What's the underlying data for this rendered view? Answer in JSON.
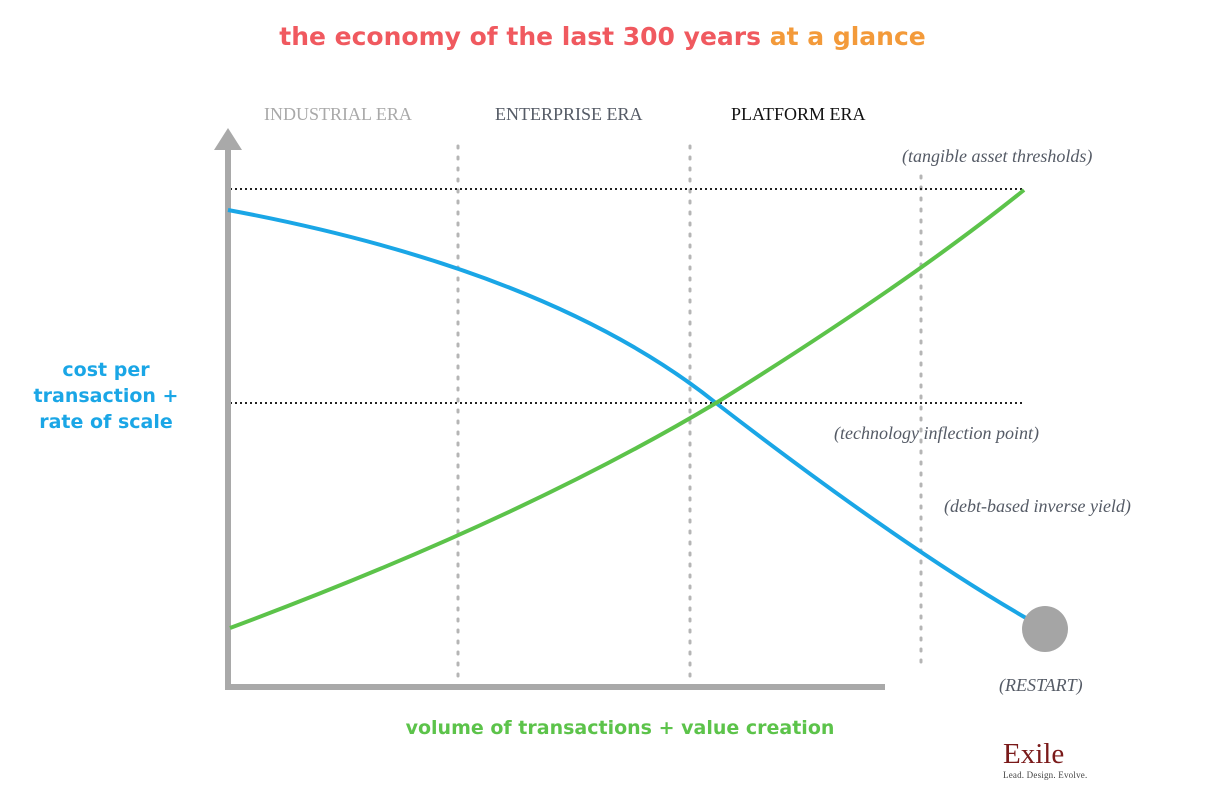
{
  "title": {
    "part1": "the economy of the last 300 years",
    "part2": "at a glance"
  },
  "eras": [
    "INDUSTRIAL ERA",
    "ENTERPRISE ERA",
    "PLATFORM ERA"
  ],
  "annotations": {
    "tangible": "(tangible asset thresholds)",
    "inflection": "(technology inflection point)",
    "debt": "(debt-based inverse yield)",
    "restart": "(RESTART)"
  },
  "axes": {
    "y_line1": "cost per",
    "y_line2": "transaction +",
    "y_line3": "rate of scale",
    "x": "volume of transactions + value creation"
  },
  "curves": {
    "cost_curve": "cost per transaction",
    "value_curve": "value creation"
  },
  "logo": {
    "name": "Exile",
    "tagline": "Lead. Design. Evolve."
  },
  "colors": {
    "title_red": "#f0595f",
    "title_orange": "#f39a3a",
    "blue": "#1aa6e6",
    "green": "#5cc34a",
    "axis_gray": "#a9a9a9",
    "logo_red": "#7a1a1a"
  }
}
